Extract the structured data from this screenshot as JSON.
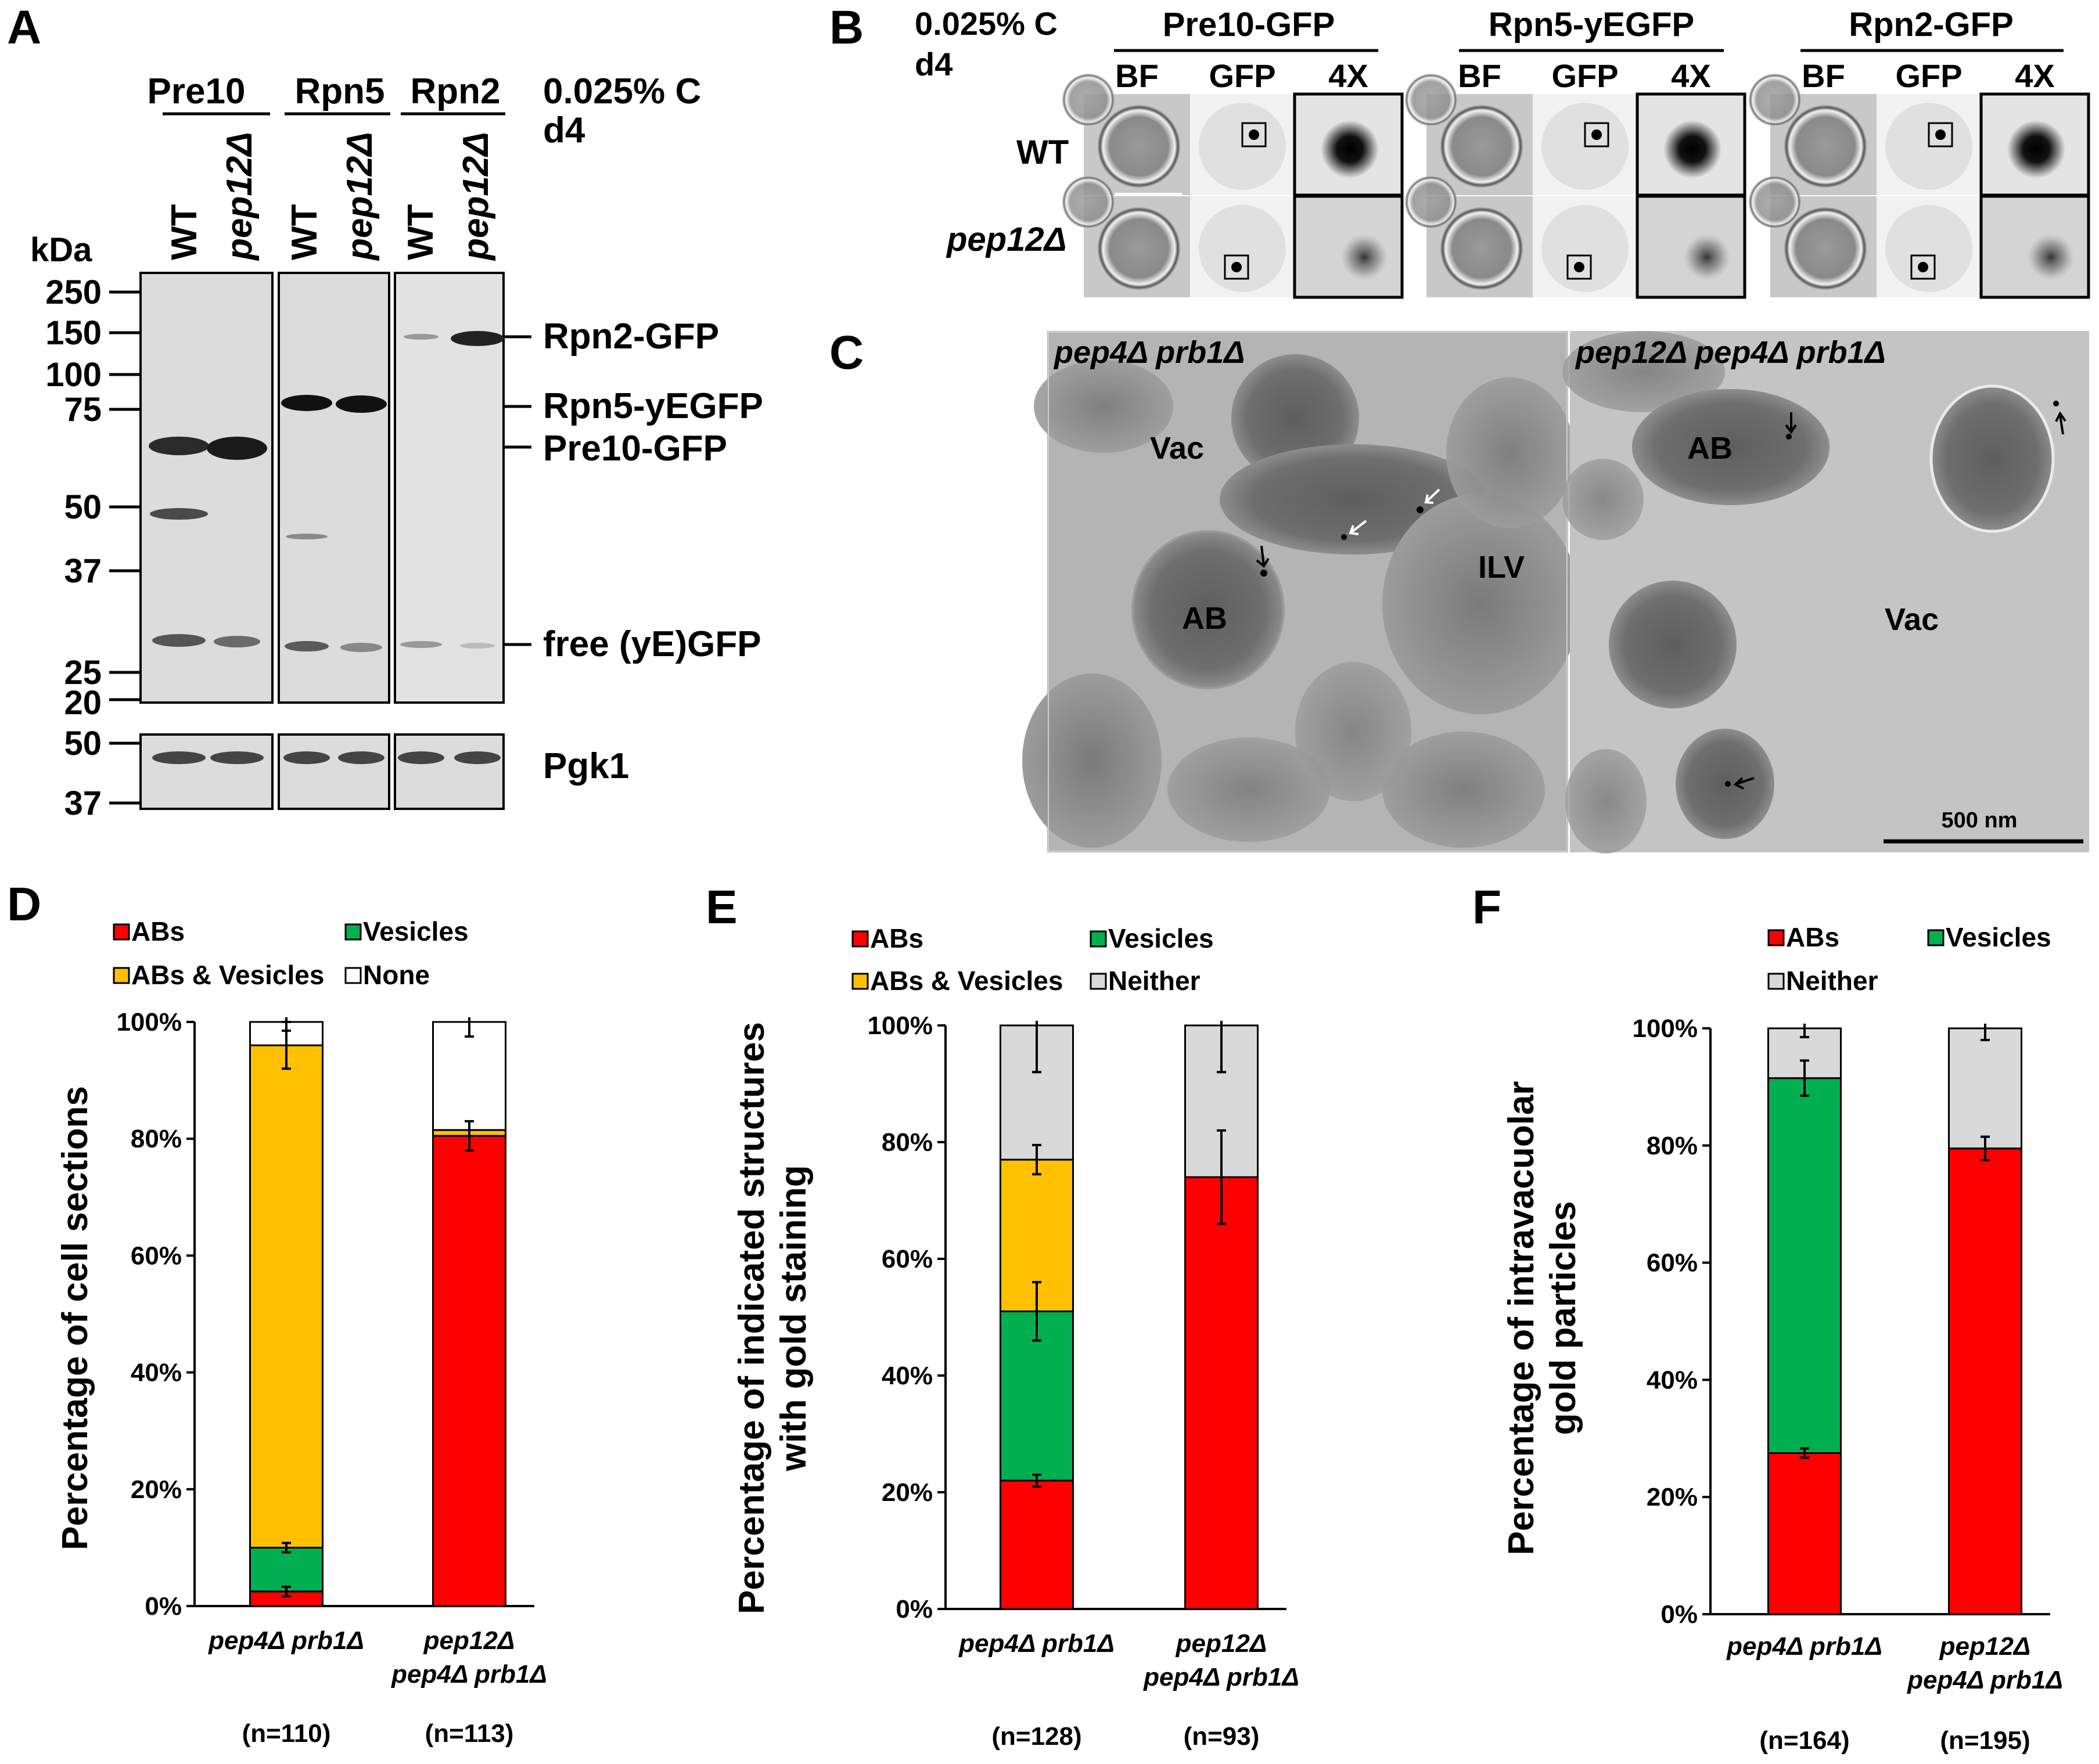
{
  "panel_labels": {
    "a": "A",
    "b": "B",
    "c": "C",
    "d": "D",
    "e": "E",
    "f": "F"
  },
  "panel_a": {
    "groups": [
      {
        "name": "Pre10",
        "lanes": [
          "WT",
          "pep12Δ"
        ]
      },
      {
        "name": "Rpn5",
        "lanes": [
          "WT",
          "pep12Δ"
        ]
      },
      {
        "name": "Rpn2",
        "lanes": [
          "WT",
          "pep12Δ"
        ]
      }
    ],
    "condition": [
      "0.025% C",
      "d4"
    ],
    "unit": "kDa",
    "markers": [
      "250",
      "150",
      "100",
      "75",
      "50",
      "37",
      "25",
      "20"
    ],
    "pgk_markers": [
      "50",
      "37"
    ],
    "band_labels": [
      "Rpn2-GFP",
      "Rpn5-yEGFP",
      "Pre10-GFP",
      "free (yE)GFP"
    ],
    "loading_label": "Pgk1"
  },
  "panel_b": {
    "condition": [
      "0.025% C",
      "d4"
    ],
    "groups": [
      "Pre10-GFP",
      "Rpn5-yEGFP",
      "Rpn2-GFP"
    ],
    "columns": [
      "BF",
      "GFP",
      "4X"
    ],
    "rows": [
      "WT",
      "pep12Δ"
    ]
  },
  "panel_c": {
    "left_title": "pep4Δ prb1Δ",
    "right_title": "pep12Δ pep4Δ prb1Δ",
    "labels_left": [
      "Vac",
      "AB",
      "ILV"
    ],
    "labels_right": [
      "AB",
      "Vac"
    ],
    "scale_bar": "500 nm"
  },
  "chart_data": [
    {
      "panel": "D",
      "type": "bar",
      "stacked": true,
      "ylabel": "Percentage of cell sections",
      "ylim": [
        0,
        100
      ],
      "yticks": [
        "0%",
        "20%",
        "40%",
        "60%",
        "80%",
        "100%"
      ],
      "categories": [
        [
          "pep4Δ prb1Δ"
        ],
        [
          "pep12Δ",
          "pep4Δ prb1Δ"
        ]
      ],
      "n_labels": [
        "(n=110)",
        "(n=113)"
      ],
      "legend": [
        "ABs",
        "Vesicles",
        "ABs & Vesicles",
        "None"
      ],
      "series": [
        {
          "name": "ABs",
          "color": "#ff0000",
          "values": [
            2.5,
            80.5
          ],
          "errors": [
            0.8,
            2.5
          ]
        },
        {
          "name": "Vesicles",
          "color": "#00b050",
          "values": [
            7.5,
            0
          ],
          "errors": [
            0.8,
            0
          ]
        },
        {
          "name": "ABs & Vesicles",
          "color": "#ffc000",
          "values": [
            86,
            1
          ],
          "errors": [
            4,
            0
          ]
        },
        {
          "name": "None",
          "color": "#ffffff",
          "values": [
            4,
            18.5
          ],
          "errors": [
            1.5,
            2.5
          ]
        }
      ]
    },
    {
      "panel": "E",
      "type": "bar",
      "stacked": true,
      "ylabel": [
        "Percentage of indicated structures",
        "with gold staining"
      ],
      "ylim": [
        0,
        100
      ],
      "yticks": [
        "0%",
        "20%",
        "40%",
        "60%",
        "80%",
        "100%"
      ],
      "categories": [
        [
          "pep4Δ prb1Δ"
        ],
        [
          "pep12Δ",
          "pep4Δ prb1Δ"
        ]
      ],
      "n_labels": [
        "(n=128)",
        "(n=93)"
      ],
      "legend": [
        "ABs",
        "Vesicles",
        "ABs & Vesicles",
        "Neither"
      ],
      "series": [
        {
          "name": "ABs",
          "color": "#ff0000",
          "values": [
            22,
            74
          ],
          "errors": [
            1,
            8
          ]
        },
        {
          "name": "Vesicles",
          "color": "#00b050",
          "values": [
            29,
            0
          ],
          "errors": [
            5,
            0
          ]
        },
        {
          "name": "ABs & Vesicles",
          "color": "#ffc000",
          "values": [
            26,
            0
          ],
          "errors": [
            2.5,
            0
          ]
        },
        {
          "name": "Neither",
          "color": "#d9d9d9",
          "values": [
            23,
            26
          ],
          "errors": [
            8,
            8
          ]
        }
      ]
    },
    {
      "panel": "F",
      "type": "bar",
      "stacked": true,
      "ylabel": [
        "Percentage of intravacuolar",
        "gold particles"
      ],
      "ylim": [
        0,
        100
      ],
      "yticks": [
        "0%",
        "20%",
        "40%",
        "60%",
        "80%",
        "100%"
      ],
      "categories": [
        [
          "pep4Δ prb1Δ"
        ],
        [
          "pep12Δ",
          "pep4Δ prb1Δ"
        ]
      ],
      "n_labels": [
        "(n=164)",
        "(n=195)"
      ],
      "legend": [
        "ABs",
        "Vesicles",
        "Neither"
      ],
      "series": [
        {
          "name": "ABs",
          "color": "#ff0000",
          "values": [
            27.5,
            79.5
          ],
          "errors": [
            0.8,
            2
          ]
        },
        {
          "name": "Vesicles",
          "color": "#00b050",
          "values": [
            64,
            0
          ],
          "errors": [
            3,
            0
          ]
        },
        {
          "name": "Neither",
          "color": "#d9d9d9",
          "values": [
            8.5,
            20.5
          ],
          "errors": [
            1.5,
            2
          ]
        }
      ]
    }
  ]
}
